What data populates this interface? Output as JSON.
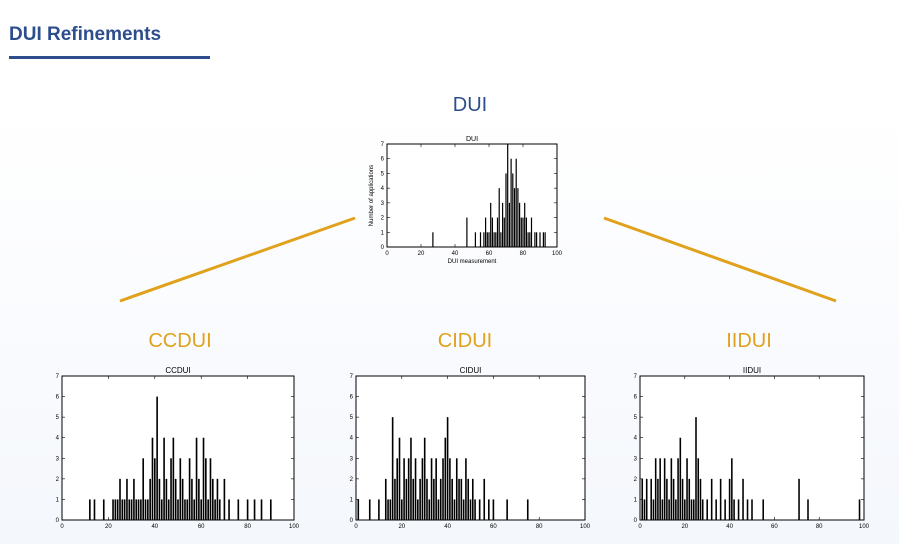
{
  "slide": {
    "title": "DUI Refinements",
    "labels": {
      "top": "DUI",
      "left": "CCDUI",
      "middle": "CIDUI",
      "right": "IIDUI"
    }
  },
  "colors": {
    "title": "#2d4e8c",
    "orange": "#e0a21d",
    "bars": "#000000"
  },
  "chart_data": [
    {
      "id": "dui",
      "type": "bar",
      "title": "DUI",
      "xlabel": "DUI measurement",
      "ylabel": "Number of applications",
      "xlim": [
        0,
        100
      ],
      "ylim": [
        0,
        7
      ],
      "xticks": [
        0,
        20,
        40,
        60,
        80,
        100
      ],
      "yticks": [
        0,
        1,
        2,
        3,
        4,
        5,
        6,
        7
      ],
      "x": [
        27,
        47,
        52,
        55,
        57,
        58,
        59,
        60,
        61,
        62,
        63,
        64,
        65,
        66,
        67,
        68,
        69,
        70,
        71,
        72,
        73,
        74,
        75,
        76,
        77,
        78,
        79,
        80,
        81,
        82,
        83,
        84,
        85,
        87,
        88,
        90,
        92,
        93
      ],
      "values": [
        1,
        2,
        1,
        1,
        1,
        2,
        1,
        1,
        3,
        2,
        1,
        1,
        2,
        4,
        1,
        3,
        2,
        5,
        7,
        3,
        6,
        5,
        4,
        6,
        4,
        3,
        2,
        2,
        3,
        2,
        1,
        1,
        2,
        1,
        1,
        1,
        1,
        1
      ]
    },
    {
      "id": "ccdui",
      "type": "bar",
      "title": "CCDUI",
      "xlabel": "",
      "ylabel": "",
      "xlim": [
        0,
        100
      ],
      "ylim": [
        0,
        7
      ],
      "xticks": [
        0,
        20,
        40,
        60,
        80,
        100
      ],
      "yticks": [
        0,
        1,
        2,
        3,
        4,
        5,
        6,
        7
      ],
      "x": [
        12,
        14,
        18,
        22,
        23,
        24,
        25,
        26,
        27,
        28,
        29,
        30,
        31,
        32,
        33,
        34,
        35,
        36,
        37,
        38,
        39,
        40,
        41,
        42,
        43,
        44,
        45,
        46,
        47,
        48,
        49,
        50,
        51,
        52,
        53,
        54,
        55,
        56,
        57,
        58,
        59,
        60,
        61,
        62,
        63,
        64,
        65,
        66,
        67,
        68,
        70,
        72,
        76,
        80,
        83,
        86,
        90
      ],
      "values": [
        1,
        1,
        1,
        1,
        1,
        1,
        2,
        1,
        1,
        2,
        1,
        1,
        2,
        1,
        1,
        1,
        3,
        1,
        1,
        2,
        4,
        3,
        6,
        2,
        1,
        4,
        2,
        1,
        3,
        4,
        2,
        1,
        3,
        2,
        1,
        1,
        3,
        2,
        1,
        4,
        2,
        1,
        4,
        3,
        1,
        3,
        2,
        1,
        2,
        1,
        2,
        1,
        1,
        1,
        1,
        1,
        1
      ]
    },
    {
      "id": "cidui",
      "type": "bar",
      "title": "CIDUI",
      "xlabel": "",
      "ylabel": "",
      "xlim": [
        0,
        100
      ],
      "ylim": [
        0,
        7
      ],
      "xticks": [
        0,
        20,
        40,
        60,
        80,
        100
      ],
      "yticks": [
        0,
        1,
        2,
        3,
        4,
        5,
        6,
        7
      ],
      "x": [
        1,
        6,
        10,
        13,
        14,
        15,
        16,
        17,
        18,
        19,
        20,
        21,
        22,
        23,
        24,
        25,
        26,
        27,
        28,
        29,
        30,
        31,
        32,
        33,
        34,
        35,
        36,
        37,
        38,
        39,
        40,
        41,
        42,
        43,
        44,
        45,
        46,
        47,
        48,
        49,
        50,
        51,
        52,
        54,
        56,
        58,
        60,
        66,
        75
      ],
      "values": [
        1,
        1,
        1,
        2,
        1,
        1,
        5,
        2,
        3,
        4,
        1,
        3,
        2,
        3,
        4,
        2,
        3,
        1,
        2,
        3,
        4,
        2,
        1,
        3,
        2,
        3,
        1,
        2,
        3,
        4,
        5,
        3,
        2,
        1,
        3,
        2,
        2,
        1,
        3,
        2,
        1,
        2,
        1,
        1,
        2,
        1,
        1,
        1,
        1
      ]
    },
    {
      "id": "iidui",
      "type": "bar",
      "title": "IIDUI",
      "xlabel": "",
      "ylabel": "",
      "xlim": [
        0,
        100
      ],
      "ylim": [
        0,
        7
      ],
      "xticks": [
        0,
        20,
        40,
        60,
        80,
        100
      ],
      "yticks": [
        0,
        1,
        2,
        3,
        4,
        5,
        6,
        7
      ],
      "x": [
        1,
        2,
        3,
        5,
        6,
        7,
        8,
        9,
        10,
        11,
        12,
        13,
        14,
        15,
        16,
        17,
        18,
        19,
        20,
        21,
        22,
        23,
        24,
        25,
        26,
        27,
        28,
        30,
        32,
        34,
        36,
        38,
        40,
        41,
        42,
        44,
        46,
        48,
        50,
        55,
        71,
        75,
        98
      ],
      "values": [
        2,
        1,
        2,
        2,
        1,
        3,
        2,
        3,
        1,
        3,
        2,
        1,
        3,
        2,
        1,
        3,
        4,
        2,
        1,
        3,
        2,
        1,
        1,
        5,
        3,
        2,
        1,
        1,
        2,
        1,
        2,
        1,
        2,
        3,
        1,
        1,
        2,
        1,
        1,
        1,
        2,
        1,
        1
      ]
    }
  ]
}
